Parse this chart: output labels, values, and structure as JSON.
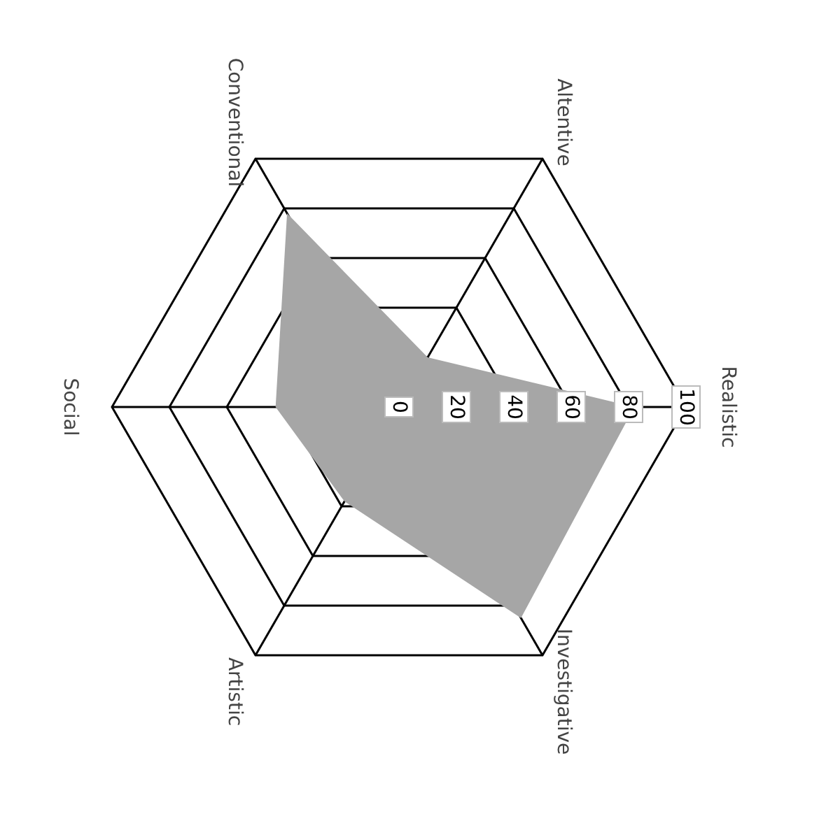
{
  "chart_data": {
    "type": "radar",
    "categories": [
      "Realistic",
      "Investigative",
      "Artistic",
      "Social",
      "Conventional",
      "Altentive"
    ],
    "series": [
      {
        "color": "#a6a6a6",
        "values": [
          82,
          85,
          38,
          43,
          78,
          20
        ]
      }
    ],
    "ylim": [
      0,
      100
    ],
    "yticks": [
      0,
      20,
      40,
      60,
      80,
      100
    ],
    "grid": true
  }
}
